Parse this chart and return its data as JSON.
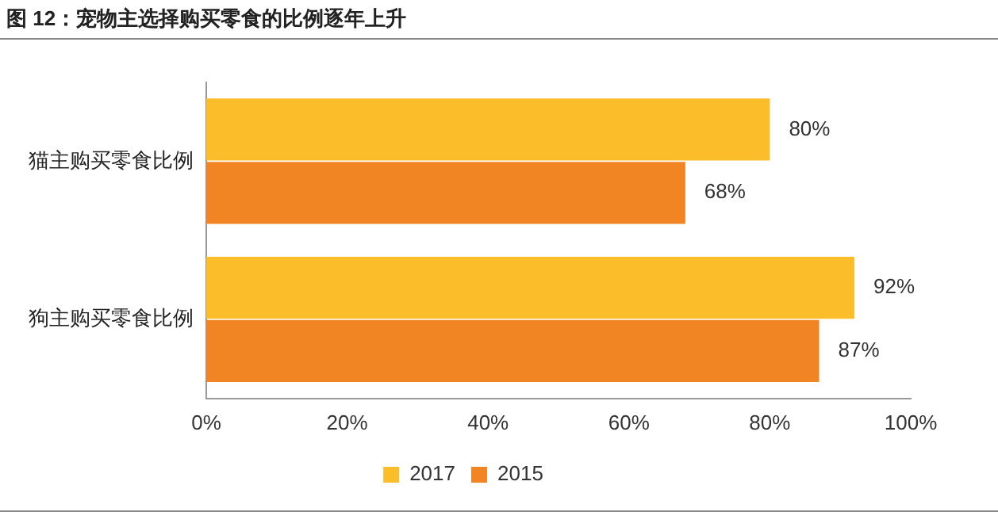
{
  "chart_data": {
    "type": "bar",
    "orientation": "horizontal",
    "title": "图 12：宠物主选择购买零食的比例逐年上升",
    "categories": [
      "猫主购买零食比例",
      "狗主购买零食比例"
    ],
    "series": [
      {
        "name": "2017",
        "color": "#fbbd2a",
        "values": [
          80,
          92
        ],
        "value_labels": [
          "80%",
          "92%"
        ]
      },
      {
        "name": "2015",
        "color": "#f18423",
        "values": [
          68,
          87
        ],
        "value_labels": [
          "68%",
          "87%"
        ]
      }
    ],
    "xlim": [
      0,
      100
    ],
    "xticks": [
      {
        "value": 0,
        "label": "0%"
      },
      {
        "value": 20,
        "label": "20%"
      },
      {
        "value": 40,
        "label": "40%"
      },
      {
        "value": 60,
        "label": "60%"
      },
      {
        "value": 80,
        "label": "80%"
      },
      {
        "value": 100,
        "label": "100%"
      }
    ],
    "grid": false,
    "legend": "bottom"
  }
}
